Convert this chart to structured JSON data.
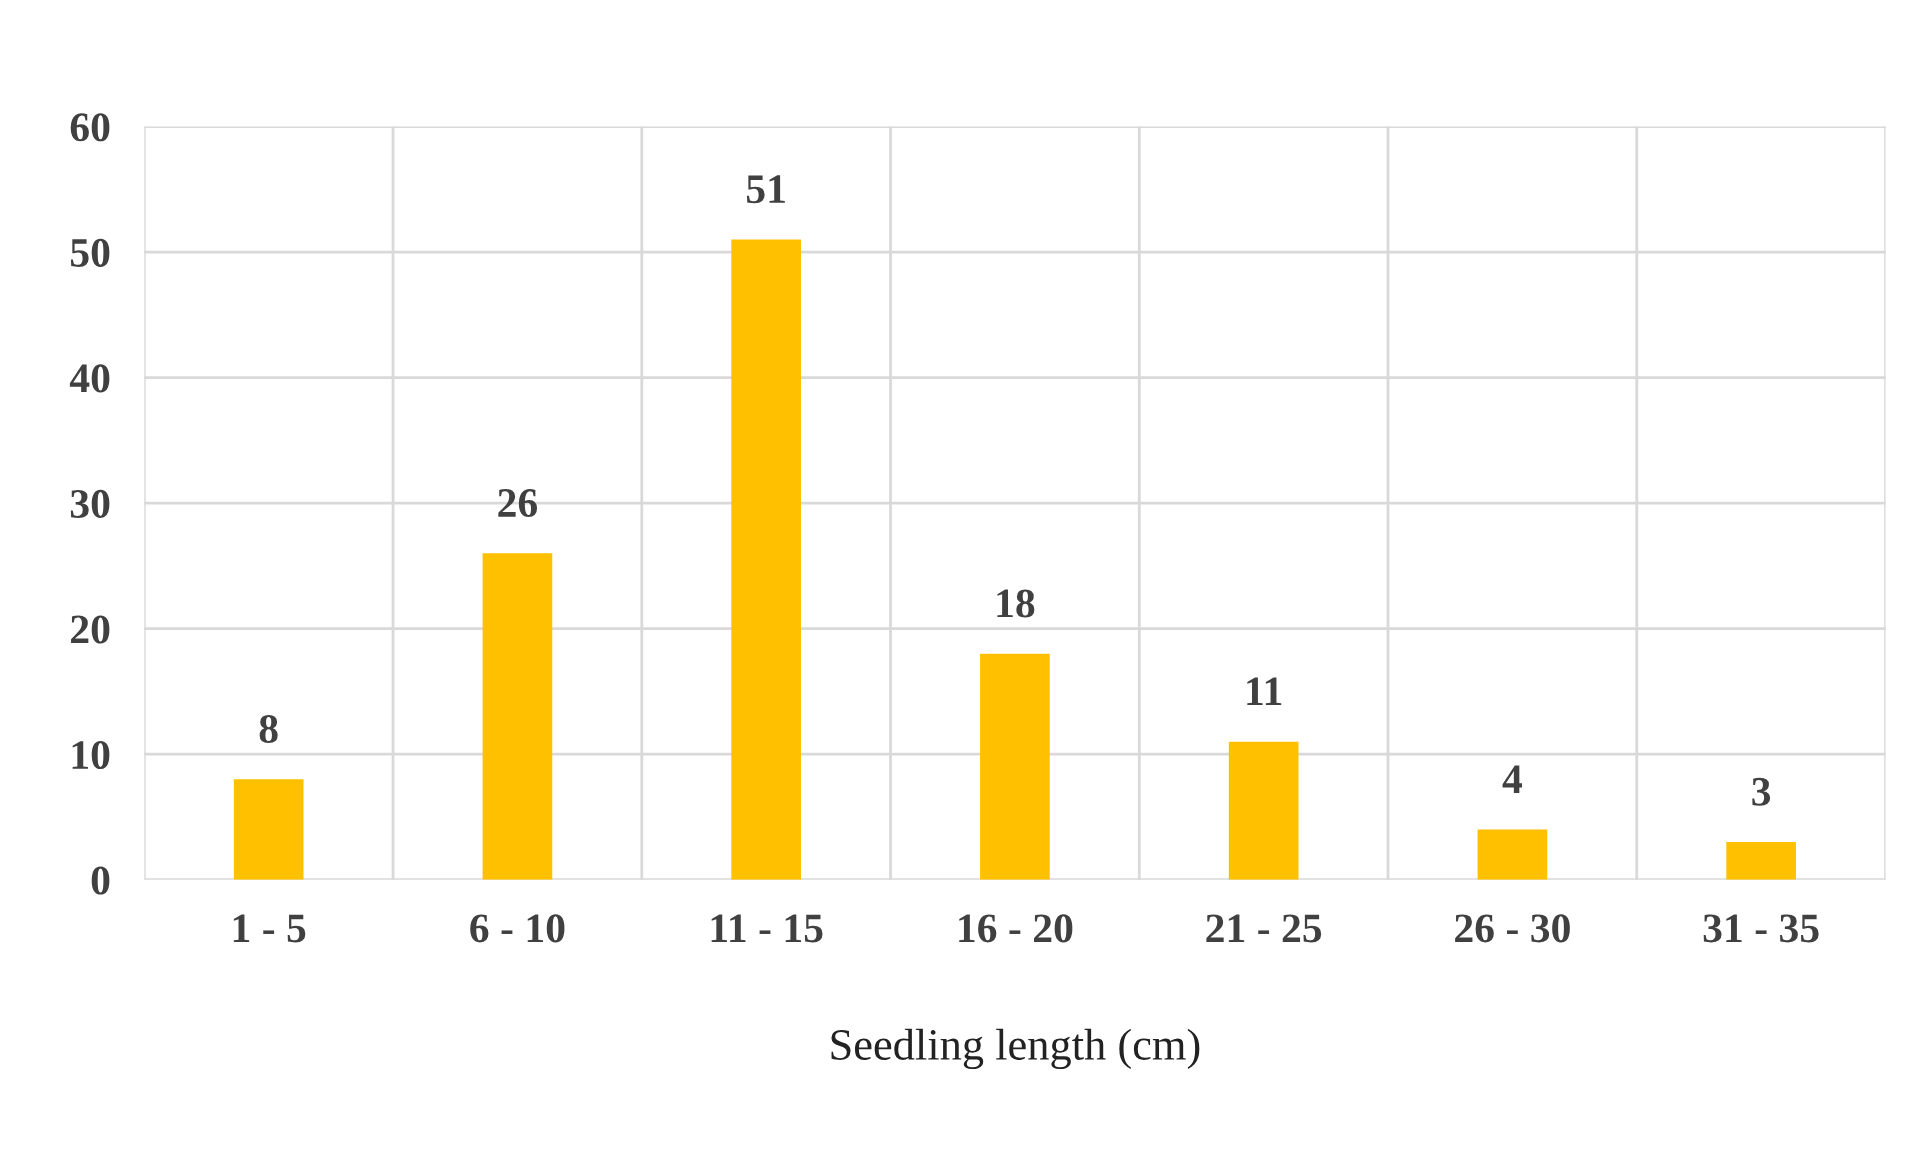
{
  "chart_data": {
    "type": "bar",
    "xlabel": "Seedling length (cm)",
    "categories": [
      "1 - 5",
      "6 - 10",
      "11 - 15",
      "16 - 20",
      "21 - 25",
      "26 - 30",
      "31 - 35"
    ],
    "values": [
      8,
      26,
      51,
      18,
      11,
      4,
      3
    ],
    "color": "#ffc000",
    "ylim": [
      0,
      60
    ],
    "yticks": [
      0,
      10,
      20,
      30,
      40,
      50,
      60
    ],
    "grid": true,
    "data_labels": true
  }
}
